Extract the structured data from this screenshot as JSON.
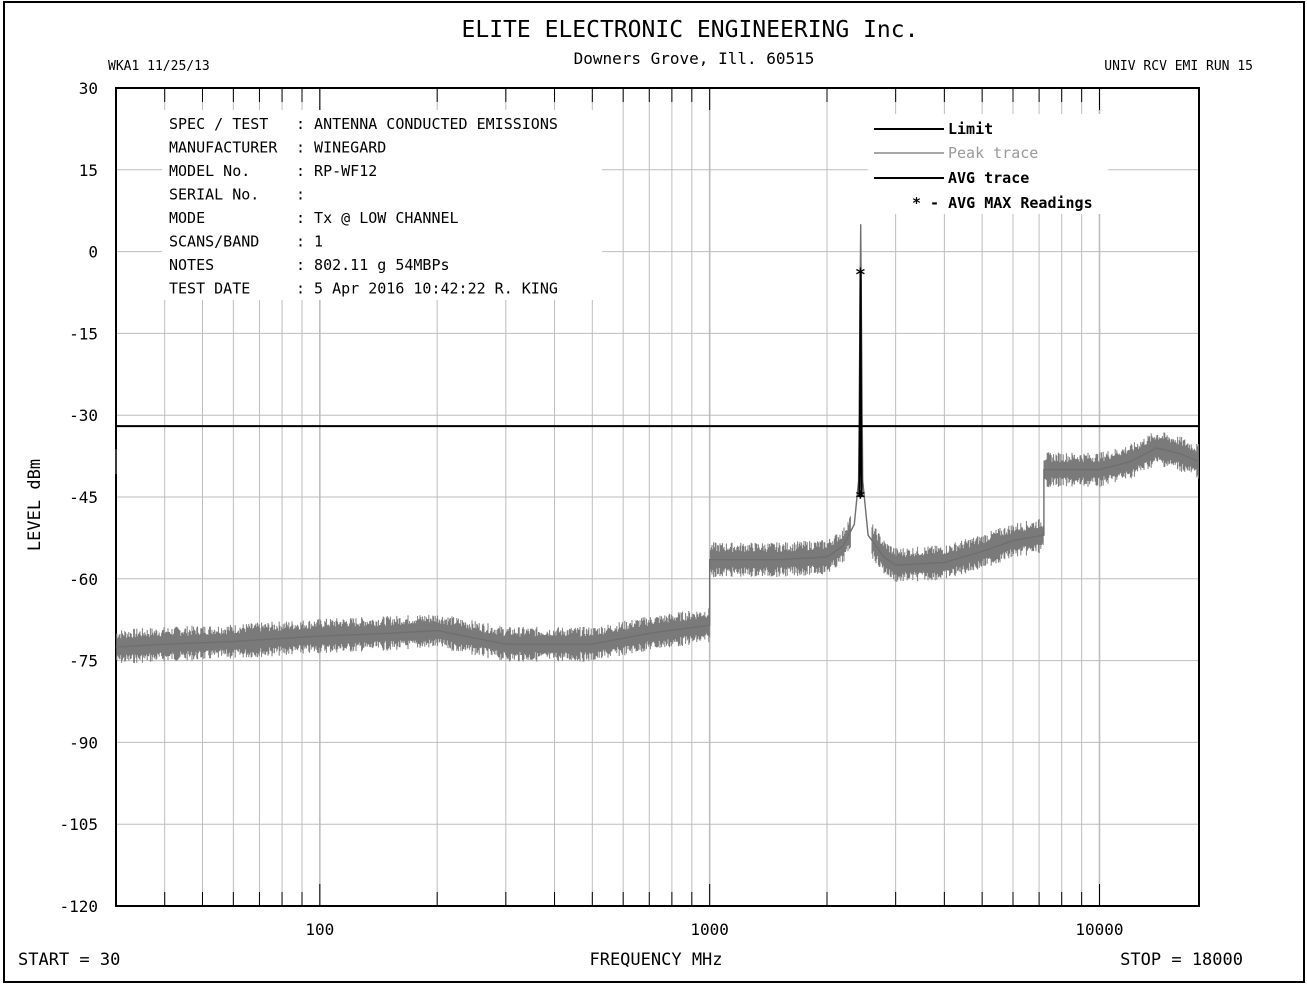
{
  "header": {
    "title": "ELITE ELECTRONIC ENGINEERING Inc.",
    "address": "Downers Grove, Ill. 60515",
    "left_code": "WKA1  11/25/13",
    "right_code": "UNIV RCV EMI  RUN 15"
  },
  "info": [
    {
      "key": "SPEC / TEST",
      "value": ": ANTENNA CONDUCTED EMISSIONS"
    },
    {
      "key": "MANUFACTURER",
      "value": ": WINEGARD"
    },
    {
      "key": "MODEL No.",
      "value": ": RP-WF12"
    },
    {
      "key": "SERIAL No.",
      "value": ":"
    },
    {
      "key": "MODE",
      "value": ": Tx @ LOW CHANNEL"
    },
    {
      "key": "SCANS/BAND",
      "value": ": 1"
    },
    {
      "key": "NOTES",
      "value": ": 802.11 g 54MBPs"
    },
    {
      "key": "TEST DATE",
      "value": ":  5 Apr 2016 10:42:22  R. KING"
    }
  ],
  "legend": {
    "limit": "Limit",
    "peak": "Peak trace",
    "avg": "AVG trace",
    "avgmax": "* - AVG MAX Readings"
  },
  "axes": {
    "ylabel": "LEVEL dBm",
    "xlabel": "FREQUENCY  MHz",
    "start": "START = 30",
    "stop": "STOP = 18000",
    "xticks": [
      "100",
      "1000",
      "10000"
    ],
    "yticks": [
      "30",
      "15",
      "0",
      "-15",
      "-30",
      "-45",
      "-60",
      "-75",
      "-90",
      "-105",
      "-120"
    ]
  },
  "colors": {
    "peak": "#7a7a7a",
    "grid": "#bdbdbd",
    "line": "#000000"
  },
  "chart_data": {
    "type": "line",
    "xscale": "log",
    "xlim": [
      30,
      18000
    ],
    "ylim": [
      -120,
      30
    ],
    "limit": -32,
    "series": [
      {
        "name": "Peak trace",
        "x": [
          30,
          40,
          60,
          100,
          150,
          200,
          300,
          500,
          700,
          1000,
          1000,
          1500,
          2000,
          2200,
          2350,
          2410,
          2440,
          2470,
          2550,
          2800,
          3000,
          4000,
          5000,
          6000,
          7200,
          7200,
          8000,
          10000,
          12000,
          14000,
          16000,
          18000
        ],
        "y": [
          -72.5,
          -72,
          -71.5,
          -70.5,
          -70,
          -69.5,
          -72,
          -72,
          -70,
          -68.5,
          -56.5,
          -56.5,
          -56,
          -54,
          -50,
          -42,
          5,
          -42,
          -52,
          -56,
          -57.5,
          -57,
          -55,
          -53,
          -52,
          -40,
          -40,
          -40,
          -38.5,
          -36,
          -37,
          -38.5
        ]
      },
      {
        "name": "AVG trace",
        "x": [
          2420,
          2430,
          2437,
          2441,
          2445,
          2455
        ],
        "y": [
          -45,
          -30,
          -4,
          -4,
          -30,
          -45
        ]
      },
      {
        "name": "AVG MAX Readings",
        "x": [
          2437,
          2437
        ],
        "y": [
          -3.8,
          -44.7
        ]
      }
    ]
  }
}
